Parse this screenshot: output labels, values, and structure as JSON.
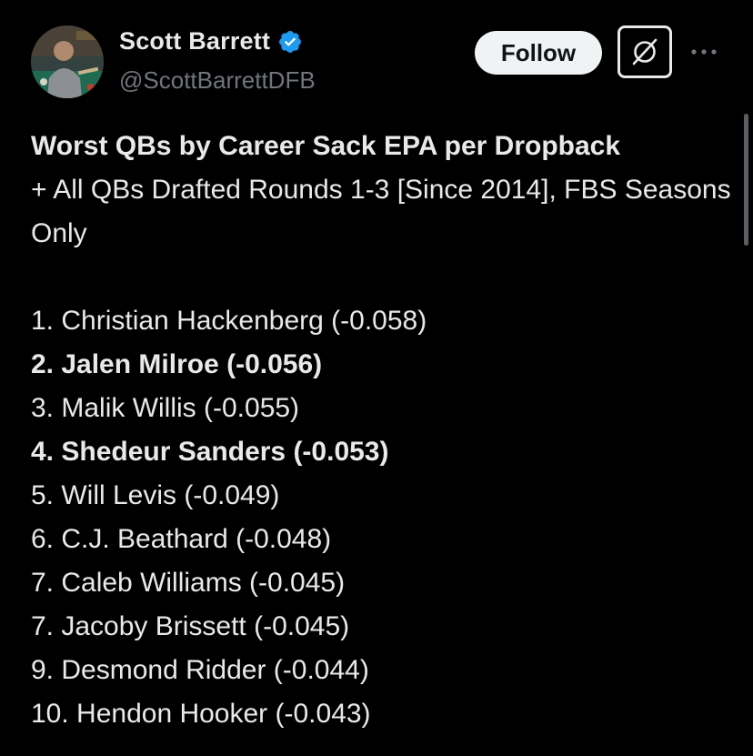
{
  "author": {
    "display_name": "Scott Barrett",
    "handle": "@ScottBarrettDFB",
    "verified": true,
    "avatar_icon": "profile-photo"
  },
  "actions": {
    "follow_label": "Follow",
    "grok_icon": "grok-icon",
    "more_icon": "more-horizontal-icon"
  },
  "colors": {
    "background": "#000000",
    "text": "#e7e9ea",
    "secondary_text": "#71767b",
    "verified_badge": "#1d9bf0",
    "follow_bg": "#eff3f4"
  },
  "post": {
    "title": "Worst QBs by Career Sack EPA per Dropback",
    "subtitle": "+ All QBs Drafted Rounds 1-3 [Since 2014], FBS Seasons Only",
    "rankings": [
      {
        "text": "1. Christian Hackenberg (-0.058)",
        "bold": false
      },
      {
        "text": "2. Jalen Milroe (-0.056)",
        "bold": true
      },
      {
        "text": "3. Malik Willis (-0.055)",
        "bold": false
      },
      {
        "text": "4. Shedeur Sanders (-0.053)",
        "bold": true
      },
      {
        "text": "5. Will Levis (-0.049)",
        "bold": false
      },
      {
        "text": "6. C.J. Beathard (-0.048)",
        "bold": false
      },
      {
        "text": "7. Caleb Williams (-0.045)",
        "bold": false
      },
      {
        "text": "7. Jacoby Brissett (-0.045)",
        "bold": false
      },
      {
        "text": "9. Desmond Ridder (-0.044)",
        "bold": false
      },
      {
        "text": "10. Hendon Hooker (-0.043)",
        "bold": false
      }
    ]
  }
}
